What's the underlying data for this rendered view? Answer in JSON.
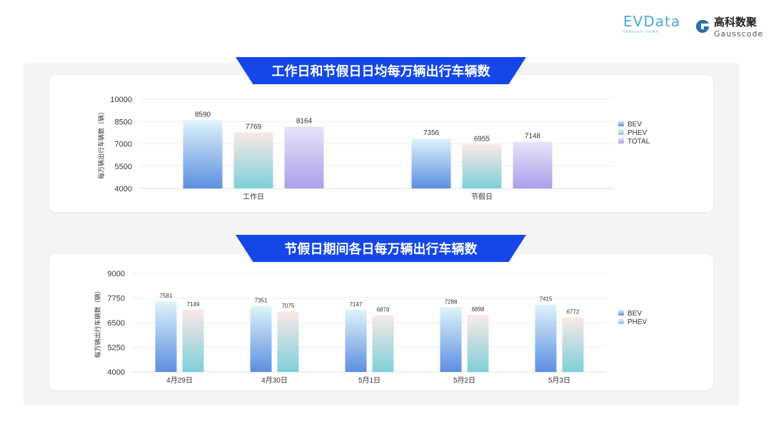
{
  "logos": {
    "evdata": "EVData",
    "evdata_sub": "SHANGHAI CHINA",
    "gauss_cn": "高科数聚",
    "gauss_en": "Gausscode"
  },
  "colors": {
    "banner": "#1547e8",
    "BEV": [
      "#dff4fb",
      "#5b8fe0"
    ],
    "PHEV": [
      "#fbe9e6",
      "#7dd0da"
    ],
    "TOTAL": [
      "#e8e4fa",
      "#a9a0ea"
    ]
  },
  "chart_data": [
    {
      "type": "bar",
      "title": "工作日和节假日日均每万辆出行车辆数",
      "ylabel": "每万辆出行车辆数（辆）",
      "ylim": [
        4000,
        10000
      ],
      "yticks": [
        4000,
        5500,
        7000,
        8500,
        10000
      ],
      "grid": true,
      "legend": "right",
      "categories": [
        "工作日",
        "节假日"
      ],
      "series": [
        {
          "name": "BEV",
          "values": [
            8590,
            7356
          ]
        },
        {
          "name": "PHEV",
          "values": [
            7769,
            6955
          ]
        },
        {
          "name": "TOTAL",
          "values": [
            8164,
            7148
          ]
        }
      ]
    },
    {
      "type": "bar",
      "title": "节假日期间各日每万辆出行车辆数",
      "ylabel": "每万辆出行车辆数（辆）",
      "ylim": [
        4000,
        9000
      ],
      "yticks": [
        4000,
        5250,
        6500,
        7750,
        9000
      ],
      "grid": true,
      "legend": "right",
      "categories": [
        "4月29日",
        "4月30日",
        "5月1日",
        "5月2日",
        "5月3日"
      ],
      "series": [
        {
          "name": "BEV",
          "values": [
            7581,
            7351,
            7147,
            7288,
            7415
          ]
        },
        {
          "name": "PHEV",
          "values": [
            7149,
            7075,
            6879,
            6898,
            6772
          ]
        }
      ]
    }
  ]
}
